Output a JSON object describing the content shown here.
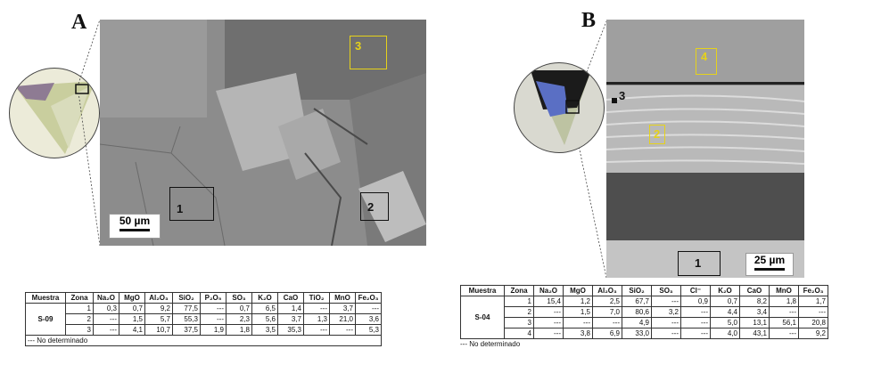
{
  "panelA": {
    "letter": "A",
    "scale_text": "50 µm",
    "zones": [
      "1",
      "2",
      "3"
    ]
  },
  "panelB": {
    "letter": "B",
    "scale_text": "25 µm",
    "zones": [
      "1",
      "2",
      "3",
      "4"
    ]
  },
  "tableA": {
    "headers": [
      "Muestra",
      "Zona",
      "Na₂O",
      "MgO",
      "Al₂O₃",
      "SiO₂",
      "P₂O₅",
      "SO₃",
      "K₂O",
      "CaO",
      "TiO₂",
      "MnO",
      "Fe₂O₃"
    ],
    "sample": "S-09",
    "rows": [
      [
        "1",
        "0,3",
        "0,7",
        "9,2",
        "77,5",
        "---",
        "0,7",
        "6,5",
        "1,4",
        "---",
        "3,7",
        "---"
      ],
      [
        "2",
        "---",
        "1,5",
        "5,7",
        "55,3",
        "---",
        "2,3",
        "5,6",
        "3,7",
        "1,3",
        "21,0",
        "3,6"
      ],
      [
        "3",
        "---",
        "4,1",
        "10,7",
        "37,5",
        "1,9",
        "1,8",
        "3,5",
        "35,3",
        "---",
        "---",
        "5,3"
      ]
    ],
    "note": "--- No determinado"
  },
  "tableB": {
    "headers": [
      "Muestra",
      "Zona",
      "Na₂O",
      "MgO",
      "Al₂O₃",
      "SiO₂",
      "SO₃",
      "Cl⁻",
      "K₂O",
      "CaO",
      "MnO",
      "Fe₂O₃"
    ],
    "sample": "S-04",
    "rows": [
      [
        "1",
        "15,4",
        "1,2",
        "2,5",
        "67,7",
        "---",
        "0,9",
        "0,7",
        "8,2",
        "1,8",
        "1,7"
      ],
      [
        "2",
        "---",
        "1,5",
        "7,0",
        "80,6",
        "3,2",
        "---",
        "4,4",
        "3,4",
        "---",
        "---"
      ],
      [
        "3",
        "---",
        "---",
        "---",
        "4,9",
        "---",
        "---",
        "5,0",
        "13,1",
        "56,1",
        "20,8"
      ],
      [
        "4",
        "---",
        "3,8",
        "6,9",
        "33,0",
        "---",
        "---",
        "4,0",
        "43,1",
        "---",
        "9,2"
      ]
    ],
    "note": "--- No determinado"
  },
  "colors": {
    "yellow_box": "#e6d21a",
    "black_box": "#111111"
  }
}
